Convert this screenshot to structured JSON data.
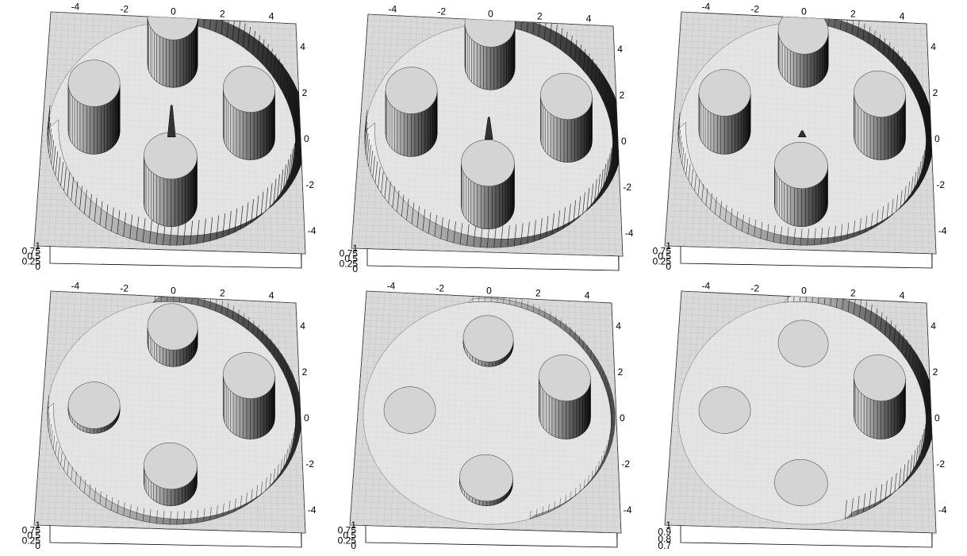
{
  "chart_data": [
    {
      "type": "surface",
      "panel": 1,
      "x_ticks": [
        "-4",
        "-2",
        "0",
        "2",
        "4"
      ],
      "y_ticks": [
        "4",
        "2",
        "0",
        "-2",
        "-4"
      ],
      "z_ticks": [
        "1",
        "0.75",
        "0.5",
        "0.25",
        "0"
      ],
      "xlim": [
        -5,
        5
      ],
      "ylim": [
        -5,
        5
      ],
      "zlim": [
        0,
        1
      ],
      "domain_radius": 4.8,
      "cylinders": [
        {
          "x": 0,
          "y": 3,
          "r": 1.0,
          "wall": 1.0
        },
        {
          "x": -3,
          "y": 0,
          "r": 1.0,
          "wall": 1.0
        },
        {
          "x": 3,
          "y": 0,
          "r": 1.0,
          "wall": 1.0
        },
        {
          "x": 0,
          "y": -3,
          "r": 1.0,
          "wall": 1.0
        }
      ],
      "boundary_wall": 1.0,
      "center_spike": 0.9,
      "shading_range": [
        -5,
        5
      ]
    },
    {
      "type": "surface",
      "panel": 2,
      "x_ticks": [
        "-4",
        "-2",
        "0",
        "2",
        "4"
      ],
      "y_ticks": [
        "4",
        "2",
        "0",
        "-2",
        "-4"
      ],
      "z_ticks": [
        "1",
        "0.75",
        "0.5",
        "0.25",
        "0"
      ],
      "xlim": [
        -5,
        5
      ],
      "ylim": [
        -5,
        5
      ],
      "zlim": [
        0,
        1
      ],
      "domain_radius": 4.8,
      "cylinders": [
        {
          "x": 0,
          "y": 3,
          "r": 1.0,
          "wall": 0.9
        },
        {
          "x": -3,
          "y": 0,
          "r": 1.0,
          "wall": 0.9
        },
        {
          "x": 3,
          "y": 0,
          "r": 1.0,
          "wall": 0.9
        },
        {
          "x": 0,
          "y": -3,
          "r": 1.0,
          "wall": 0.9
        }
      ],
      "boundary_wall": 0.9,
      "center_spike": 0.6,
      "shading_range": [
        -5,
        5
      ]
    },
    {
      "type": "surface",
      "panel": 3,
      "x_ticks": [
        "-4",
        "-2",
        "0",
        "2",
        "4"
      ],
      "y_ticks": [
        "4",
        "2",
        "0",
        "-2",
        "-4"
      ],
      "z_ticks": [
        "1",
        "0.75",
        "0.5",
        "0.25",
        "0"
      ],
      "xlim": [
        -5,
        5
      ],
      "ylim": [
        -5,
        5
      ],
      "zlim": [
        0,
        1
      ],
      "domain_radius": 4.8,
      "cylinders": [
        {
          "x": 0,
          "y": 3,
          "r": 1.0,
          "wall": 0.7
        },
        {
          "x": -3,
          "y": 0,
          "r": 1.0,
          "wall": 0.8
        },
        {
          "x": 3,
          "y": 0,
          "r": 1.0,
          "wall": 0.9
        },
        {
          "x": 0,
          "y": -3,
          "r": 1.0,
          "wall": 0.8
        }
      ],
      "boundary_wall": 0.7,
      "center_spike": 0.1,
      "shading_range": [
        -2,
        5
      ]
    },
    {
      "type": "surface",
      "panel": 4,
      "x_ticks": [
        "-4",
        "-2",
        "0",
        "2",
        "4"
      ],
      "y_ticks": [
        "4",
        "2",
        "0",
        "-2",
        "-4"
      ],
      "z_ticks": [
        "1",
        "0.75",
        "0.5",
        "0.25",
        "0"
      ],
      "xlim": [
        -5,
        5
      ],
      "ylim": [
        -5,
        5
      ],
      "zlim": [
        0,
        1
      ],
      "domain_radius": 4.8,
      "cylinders": [
        {
          "x": 0,
          "y": 3,
          "r": 1.0,
          "wall": 0.35
        },
        {
          "x": -3,
          "y": 0,
          "r": 1.0,
          "wall": 0.1
        },
        {
          "x": 3,
          "y": 0,
          "r": 1.0,
          "wall": 0.85
        },
        {
          "x": 0,
          "y": -3,
          "r": 1.0,
          "wall": 0.35
        }
      ],
      "boundary_wall": 0.55,
      "center_spike": 0.0,
      "shading_range": [
        0,
        5
      ]
    },
    {
      "type": "surface",
      "panel": 5,
      "x_ticks": [
        "-4",
        "-2",
        "0",
        "2",
        "4"
      ],
      "y_ticks": [
        "4",
        "2",
        "0",
        "-2",
        "-4"
      ],
      "z_ticks": [
        "1",
        "0.75",
        "0.5",
        "0.25",
        "0"
      ],
      "xlim": [
        -5,
        5
      ],
      "ylim": [
        -5,
        5
      ],
      "zlim": [
        0,
        1
      ],
      "domain_radius": 4.8,
      "cylinders": [
        {
          "x": 0,
          "y": 3,
          "r": 1.0,
          "wall": 0.1
        },
        {
          "x": -3,
          "y": 0,
          "r": 1.0,
          "wall": 0.0
        },
        {
          "x": 3,
          "y": 0,
          "r": 1.0,
          "wall": 0.8
        },
        {
          "x": 0,
          "y": -3,
          "r": 1.0,
          "wall": 0.1
        }
      ],
      "boundary_wall": 0.35,
      "center_spike": 0.0,
      "shading_range": [
        1,
        5
      ]
    },
    {
      "type": "surface",
      "panel": 6,
      "x_ticks": [
        "-4",
        "-2",
        "0",
        "2",
        "4"
      ],
      "y_ticks": [
        "4",
        "2",
        "0",
        "-2",
        "-4"
      ],
      "z_ticks": [
        "1",
        "0.9",
        "0.8",
        "0.7"
      ],
      "xlim": [
        -5,
        5
      ],
      "ylim": [
        -5,
        5
      ],
      "zlim": [
        0.7,
        1
      ],
      "domain_radius": 4.8,
      "cylinders": [
        {
          "x": 0,
          "y": 3,
          "r": 1.0,
          "wall": 0.0
        },
        {
          "x": -3,
          "y": 0,
          "r": 1.0,
          "wall": 0.0
        },
        {
          "x": 3,
          "y": 0,
          "r": 1.0,
          "wall": 0.8
        },
        {
          "x": 0,
          "y": -3,
          "r": 1.0,
          "wall": 0.0
        }
      ],
      "boundary_wall": 0.8,
      "center_spike": 0.0,
      "shading_range": [
        1.5,
        5
      ]
    }
  ]
}
